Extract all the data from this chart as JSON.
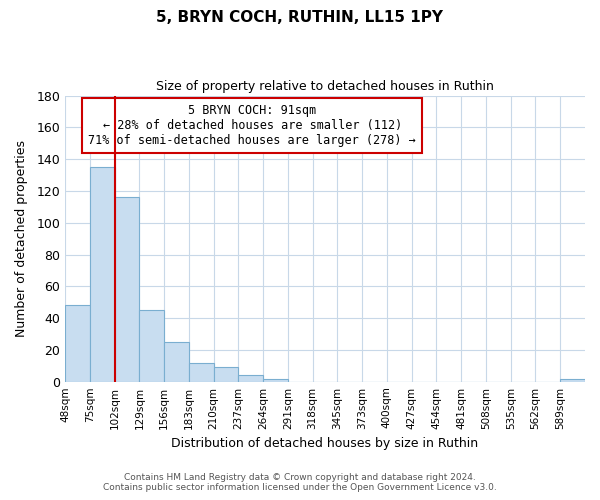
{
  "title": "5, BRYN COCH, RUTHIN, LL15 1PY",
  "subtitle": "Size of property relative to detached houses in Ruthin",
  "xlabel": "Distribution of detached houses by size in Ruthin",
  "ylabel": "Number of detached properties",
  "bar_color": "#c8ddf0",
  "bar_edge_color": "#7aaed0",
  "background_color": "#ffffff",
  "grid_color": "#c8d8e8",
  "bins": [
    "48sqm",
    "75sqm",
    "102sqm",
    "129sqm",
    "156sqm",
    "183sqm",
    "210sqm",
    "237sqm",
    "264sqm",
    "291sqm",
    "318sqm",
    "345sqm",
    "373sqm",
    "400sqm",
    "427sqm",
    "454sqm",
    "481sqm",
    "508sqm",
    "535sqm",
    "562sqm",
    "589sqm"
  ],
  "values": [
    48,
    135,
    116,
    45,
    25,
    12,
    9,
    4,
    2,
    0,
    0,
    0,
    0,
    0,
    0,
    0,
    0,
    0,
    0,
    0,
    2
  ],
  "ylim": [
    0,
    180
  ],
  "yticks": [
    0,
    20,
    40,
    60,
    80,
    100,
    120,
    140,
    160,
    180
  ],
  "property_line_color": "#cc0000",
  "annotation_line1": "5 BRYN COCH: 91sqm",
  "annotation_line2": "← 28% of detached houses are smaller (112)",
  "annotation_line3": "71% of semi-detached houses are larger (278) →",
  "annotation_box_color": "#ffffff",
  "annotation_box_edge": "#cc0000",
  "footer_line1": "Contains HM Land Registry data © Crown copyright and database right 2024.",
  "footer_line2": "Contains public sector information licensed under the Open Government Licence v3.0."
}
